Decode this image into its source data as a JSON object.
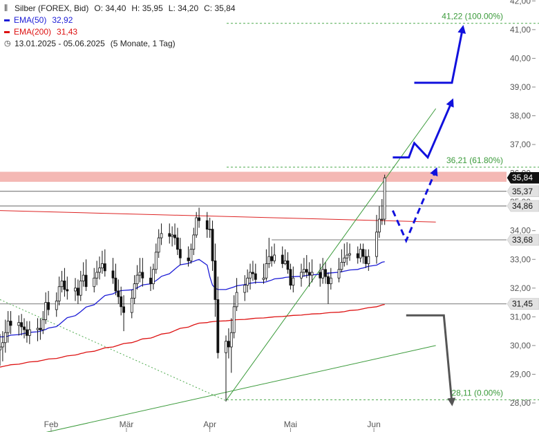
{
  "legend": {
    "title": "Silber (FOREX, Bid)",
    "ohlc": {
      "o": "O: 34,40",
      "h": "H: 35,95",
      "l": "L: 34,20",
      "c": "C: 35,84"
    },
    "ema50": {
      "label": "EMA(50)",
      "value": "32,92",
      "color": "#1c1cd6"
    },
    "ema200": {
      "label": "EMA(200)",
      "value": "31,43",
      "color": "#dd1111"
    },
    "period": "13.01.2025 - 05.06.2025",
    "period_detail": "(5 Monate, 1 Tag)"
  },
  "chart_data": {
    "type": "candlestick",
    "y_axis": {
      "min": 27.5,
      "max": 42.0,
      "ticks": [
        "42,00",
        "41,00",
        "40,00",
        "39,00",
        "38,00",
        "37,00",
        "36,00",
        "35,00",
        "34,00",
        "33,00",
        "32,00",
        "31,00",
        "30,00",
        "29,00",
        "28,00"
      ],
      "tick_values": [
        42,
        41,
        40,
        39,
        38,
        37,
        36,
        35,
        34,
        33,
        32,
        31,
        30,
        29,
        28
      ],
      "position": "right"
    },
    "x_axis": {
      "labels": [
        "Feb",
        "Mär",
        "Apr",
        "Mai",
        "Jun"
      ],
      "label_dates": [
        "2025-02-01",
        "2025-03-01",
        "2025-04-01",
        "2025-05-01",
        "2025-06-01"
      ],
      "start": "2025-01-13",
      "end": "2025-06-05"
    },
    "price_labels": [
      {
        "text": "35,84",
        "value": 35.84,
        "style": "current"
      },
      {
        "text": "35,37",
        "value": 35.37,
        "style": "level"
      },
      {
        "text": "34,86",
        "value": 34.86,
        "style": "level"
      },
      {
        "text": "33,68",
        "value": 33.68,
        "style": "level"
      },
      {
        "text": "31,45",
        "value": 31.45,
        "style": "level"
      }
    ],
    "fib_levels": [
      {
        "text": "41,22 (100.00%)",
        "value": 41.22
      },
      {
        "text": "36,21 (61.80%)",
        "value": 36.21
      },
      {
        "text": "28,11 (0.00%)",
        "value": 28.11
      }
    ],
    "resistance_zone": [
      35.7,
      36.05
    ],
    "horizontal_lines": [
      35.37,
      34.86
    ],
    "candles": {
      "start_date": "2025-01-13",
      "dates": [
        "2025-01-13",
        "2025-01-14",
        "2025-01-15",
        "2025-01-16",
        "2025-01-17",
        "2025-01-20",
        "2025-01-21",
        "2025-01-22",
        "2025-01-23",
        "2025-01-24",
        "2025-01-27",
        "2025-01-28",
        "2025-01-29",
        "2025-01-30",
        "2025-01-31",
        "2025-02-03",
        "2025-02-04",
        "2025-02-05",
        "2025-02-06",
        "2025-02-07",
        "2025-02-10",
        "2025-02-11",
        "2025-02-12",
        "2025-02-13",
        "2025-02-14",
        "2025-02-17",
        "2025-02-18",
        "2025-02-19",
        "2025-02-20",
        "2025-02-21",
        "2025-02-24",
        "2025-02-25",
        "2025-02-26",
        "2025-02-27",
        "2025-02-28",
        "2025-03-03",
        "2025-03-04",
        "2025-03-05",
        "2025-03-06",
        "2025-03-07",
        "2025-03-10",
        "2025-03-11",
        "2025-03-12",
        "2025-03-13",
        "2025-03-14",
        "2025-03-17",
        "2025-03-18",
        "2025-03-19",
        "2025-03-20",
        "2025-03-21",
        "2025-03-24",
        "2025-03-25",
        "2025-03-26",
        "2025-03-27",
        "2025-03-28",
        "2025-03-31",
        "2025-04-01",
        "2025-04-02",
        "2025-04-03",
        "2025-04-04",
        "2025-04-07",
        "2025-04-08",
        "2025-04-09",
        "2025-04-10",
        "2025-04-11",
        "2025-04-14",
        "2025-04-15",
        "2025-04-16",
        "2025-04-17",
        "2025-04-18",
        "2025-04-21",
        "2025-04-22",
        "2025-04-23",
        "2025-04-24",
        "2025-04-25",
        "2025-04-28",
        "2025-04-29",
        "2025-04-30",
        "2025-05-01",
        "2025-05-02",
        "2025-05-05",
        "2025-05-06",
        "2025-05-07",
        "2025-05-08",
        "2025-05-09",
        "2025-05-12",
        "2025-05-13",
        "2025-05-14",
        "2025-05-15",
        "2025-05-16",
        "2025-05-19",
        "2025-05-20",
        "2025-05-21",
        "2025-05-22",
        "2025-05-23",
        "2025-05-26",
        "2025-05-27",
        "2025-05-28",
        "2025-05-29",
        "2025-05-30",
        "2025-06-02",
        "2025-06-03",
        "2025-06-04",
        "2025-06-05"
      ],
      "open": [
        29.85,
        29.95,
        30.1,
        30.45,
        30.85,
        30.7,
        30.8,
        30.65,
        30.55,
        30.35,
        30.55,
        30.6,
        30.55,
        30.9,
        31.5,
        31.25,
        31.55,
        32.05,
        32.25,
        31.95,
        31.9,
        32.0,
        31.75,
        32.25,
        32.45,
        32.05,
        32.35,
        32.55,
        32.7,
        32.85,
        32.6,
        32.35,
        31.9,
        31.7,
        31.35,
        31.15,
        31.65,
        32.15,
        32.45,
        32.55,
        32.35,
        32.15,
        32.65,
        33.25,
        33.75,
        33.9,
        33.8,
        33.85,
        33.75,
        33.35,
        33.05,
        32.95,
        33.35,
        33.85,
        34.45,
        34.35,
        34.05,
        34.05,
        32.95,
        31.6,
        29.75,
        30.15,
        29.95,
        30.45,
        31.35,
        31.85,
        32.1,
        32.35,
        32.55,
        32.5,
        32.3,
        32.35,
        32.85,
        33.1,
        32.95,
        33.15,
        32.85,
        32.95,
        32.65,
        32.1,
        32.35,
        32.55,
        32.65,
        32.55,
        32.45,
        32.55,
        32.35,
        32.65,
        32.4,
        32.15,
        32.35,
        32.65,
        32.9,
        33.05,
        33.15,
        33.2,
        33.05,
        33.35,
        33.1,
        32.85,
        33.1,
        33.95,
        34.4,
        34.4
      ],
      "high": [
        30.4,
        30.5,
        30.9,
        31.2,
        31.2,
        31.05,
        31.1,
        30.95,
        30.85,
        30.85,
        30.95,
        30.95,
        31.2,
        31.85,
        31.9,
        31.85,
        32.4,
        32.6,
        32.7,
        32.4,
        32.35,
        32.3,
        32.6,
        32.9,
        33.0,
        32.7,
        32.95,
        33.1,
        33.3,
        33.35,
        33.05,
        32.85,
        32.3,
        32.05,
        31.75,
        31.95,
        32.45,
        32.8,
        33.05,
        33.05,
        32.75,
        32.85,
        33.55,
        34.05,
        34.25,
        34.25,
        34.15,
        34.25,
        34.1,
        33.75,
        33.45,
        33.55,
        34.1,
        34.65,
        34.8,
        34.65,
        34.45,
        34.35,
        33.55,
        32.4,
        30.35,
        30.6,
        30.95,
        31.75,
        32.35,
        32.45,
        32.65,
        32.85,
        32.95,
        32.85,
        32.85,
        33.35,
        33.75,
        33.45,
        33.55,
        33.45,
        33.35,
        33.25,
        32.85,
        32.75,
        32.85,
        33.05,
        33.15,
        32.9,
        33.0,
        32.85,
        33.05,
        32.9,
        32.55,
        32.7,
        33.05,
        33.35,
        33.55,
        33.6,
        33.55,
        33.45,
        33.55,
        33.55,
        33.35,
        33.35,
        34.55,
        34.85,
        35.1,
        35.95
      ],
      "low": [
        29.3,
        29.45,
        29.75,
        30.1,
        30.4,
        30.35,
        30.35,
        30.25,
        30.1,
        30.05,
        30.15,
        30.2,
        30.4,
        30.75,
        31.05,
        31.0,
        31.4,
        31.85,
        31.7,
        31.6,
        31.55,
        31.45,
        31.55,
        32.05,
        31.9,
        31.85,
        32.1,
        32.3,
        32.5,
        32.4,
        32.15,
        31.75,
        31.45,
        31.05,
        30.5,
        30.95,
        31.45,
        31.95,
        32.2,
        32.05,
        31.9,
        31.95,
        32.5,
        33.05,
        33.5,
        33.55,
        33.45,
        33.5,
        33.15,
        32.8,
        32.75,
        32.85,
        33.15,
        33.75,
        34.1,
        33.75,
        33.75,
        32.6,
        31.0,
        29.55,
        28.05,
        29.55,
        29.05,
        30.25,
        31.2,
        31.55,
        31.85,
        31.95,
        32.25,
        32.15,
        32.15,
        32.25,
        32.7,
        32.75,
        32.85,
        32.7,
        32.8,
        32.5,
        31.95,
        31.85,
        32.05,
        32.4,
        32.35,
        32.05,
        32.2,
        32.05,
        32.15,
        32.15,
        31.45,
        31.95,
        32.2,
        32.55,
        32.75,
        32.8,
        32.95,
        32.85,
        32.9,
        32.85,
        32.7,
        32.6,
        32.85,
        33.75,
        34.2,
        34.2
      ],
      "close": [
        29.95,
        30.1,
        30.45,
        30.85,
        30.7,
        30.8,
        30.65,
        30.55,
        30.35,
        30.55,
        30.6,
        30.55,
        30.9,
        31.5,
        31.25,
        31.55,
        32.05,
        32.25,
        31.95,
        31.9,
        32.0,
        31.75,
        32.25,
        32.45,
        32.05,
        32.35,
        32.55,
        32.7,
        32.85,
        32.6,
        32.35,
        31.9,
        31.7,
        31.35,
        31.15,
        31.65,
        32.15,
        32.45,
        32.55,
        32.35,
        32.15,
        32.65,
        33.25,
        33.75,
        33.9,
        33.8,
        33.85,
        33.75,
        33.35,
        33.05,
        32.95,
        33.35,
        33.85,
        34.45,
        34.35,
        34.05,
        34.05,
        32.95,
        31.6,
        29.75,
        30.15,
        29.95,
        30.45,
        31.35,
        31.85,
        32.1,
        32.35,
        32.55,
        32.5,
        32.3,
        32.35,
        32.85,
        33.1,
        32.95,
        33.15,
        32.85,
        32.95,
        32.65,
        32.1,
        32.35,
        32.55,
        32.65,
        32.55,
        32.45,
        32.55,
        32.35,
        32.65,
        32.4,
        32.15,
        32.35,
        32.65,
        32.9,
        33.05,
        33.15,
        33.2,
        33.05,
        33.35,
        33.1,
        32.85,
        33.1,
        33.95,
        34.4,
        34.4,
        35.84
      ]
    },
    "ema50_values": [
      30.3,
      30.3,
      30.31,
      30.33,
      30.36,
      30.38,
      30.4,
      30.42,
      30.44,
      30.46,
      30.48,
      30.5,
      30.53,
      30.56,
      30.61,
      30.66,
      30.73,
      30.81,
      30.89,
      30.97,
      31.04,
      31.11,
      31.18,
      31.26,
      31.34,
      31.42,
      31.5,
      31.58,
      31.66,
      31.74,
      31.8,
      31.85,
      31.89,
      31.91,
      31.92,
      31.94,
      31.97,
      32.01,
      32.06,
      32.11,
      32.15,
      32.2,
      32.26,
      32.33,
      32.41,
      32.5,
      32.58,
      32.66,
      32.74,
      32.81,
      32.86,
      32.9,
      32.93,
      32.97,
      33.0,
      32.8,
      32.4,
      32.1,
      32.0,
      31.95,
      31.95,
      31.98,
      32.01,
      32.04,
      32.08,
      32.12,
      32.15,
      32.17,
      32.18,
      32.2,
      32.2,
      32.22,
      32.25,
      32.28,
      32.32,
      32.35,
      32.37,
      32.38,
      32.39,
      32.4,
      32.41,
      32.42,
      32.44,
      32.45,
      32.46,
      32.48,
      32.49,
      32.51,
      32.52,
      32.53,
      32.55,
      32.57,
      32.59,
      32.61,
      32.63,
      32.65,
      32.68,
      32.7,
      32.73,
      32.76,
      32.8,
      32.85,
      32.9,
      32.92
    ],
    "ema200_values": [
      29.25,
      29.27,
      29.29,
      29.31,
      29.33,
      29.35,
      29.37,
      29.39,
      29.41,
      29.43,
      29.45,
      29.47,
      29.49,
      29.51,
      29.53,
      29.55,
      29.57,
      29.59,
      29.62,
      29.64,
      29.67,
      29.69,
      29.72,
      29.74,
      29.77,
      29.8,
      29.83,
      29.86,
      29.89,
      29.92,
      29.95,
      29.98,
      30.01,
      30.04,
      30.07,
      30.1,
      30.13,
      30.16,
      30.2,
      30.23,
      30.26,
      30.29,
      30.33,
      30.36,
      30.4,
      30.44,
      30.48,
      30.52,
      30.56,
      30.6,
      30.64,
      30.68,
      30.72,
      30.75,
      30.78,
      30.8,
      30.82,
      30.83,
      30.84,
      30.85,
      30.86,
      30.87,
      30.88,
      30.89,
      30.9,
      30.91,
      30.92,
      30.93,
      30.94,
      30.95,
      30.96,
      30.97,
      30.98,
      30.99,
      31.0,
      31.01,
      31.02,
      31.03,
      31.04,
      31.05,
      31.06,
      31.07,
      31.08,
      31.09,
      31.1,
      31.11,
      31.12,
      31.13,
      31.14,
      31.15,
      31.16,
      31.17,
      31.18,
      31.2,
      31.22,
      31.24,
      31.26,
      31.28,
      31.3,
      31.32,
      31.35,
      31.38,
      31.41,
      31.43
    ],
    "trendlines": [
      {
        "name": "red-downtrend",
        "color": "#dd2222",
        "from": [
          "2025-01-13",
          34.7
        ],
        "to": [
          "2025-06-24",
          34.3
        ]
      },
      {
        "name": "green-steep-support",
        "color": "#3a9a3a",
        "from": [
          "2025-04-07",
          28.08
        ],
        "to": [
          "2025-06-24",
          38.25
        ]
      },
      {
        "name": "green-long-support",
        "color": "#3a9a3a",
        "from": [
          "2025-01-24",
          26.85
        ],
        "to": [
          "2025-06-24",
          30.0
        ]
      },
      {
        "name": "green-dotted",
        "color": "#4aa84a",
        "from": [
          "2025-01-13",
          31.6
        ],
        "to": [
          "2025-04-07",
          28.08
        ],
        "dashed": true
      }
    ],
    "grey_levels": [
      {
        "value": 33.68,
        "from": "2025-04-24"
      },
      {
        "value": 31.45,
        "from": "2025-01-13"
      }
    ],
    "scenarios": [
      {
        "name": "blue-dashed-path",
        "color": "#1111dd",
        "dashed": true,
        "points": [
          [
            "2025-06-08",
            34.7
          ],
          [
            "2025-06-13",
            33.65
          ],
          [
            "2025-06-24",
            36.1
          ]
        ]
      },
      {
        "name": "blue-solid-path-1",
        "color": "#1111dd",
        "dashed": false,
        "points": [
          [
            "2025-06-08",
            36.55
          ],
          [
            "2025-06-14",
            36.55
          ],
          [
            "2025-06-16",
            37.05
          ],
          [
            "2025-06-21",
            36.55
          ],
          [
            "2025-06-30",
            38.5
          ]
        ]
      },
      {
        "name": "blue-solid-path-2",
        "color": "#1111dd",
        "dashed": false,
        "points": [
          [
            "2025-06-16",
            39.15
          ],
          [
            "2025-06-30",
            39.15
          ],
          [
            "2025-07-04",
            41.05
          ]
        ]
      },
      {
        "name": "grey-path",
        "color": "#555555",
        "dashed": false,
        "points": [
          [
            "2025-06-13",
            31.05
          ],
          [
            "2025-06-27",
            31.05
          ],
          [
            "2025-06-30",
            28.0
          ]
        ]
      }
    ]
  }
}
